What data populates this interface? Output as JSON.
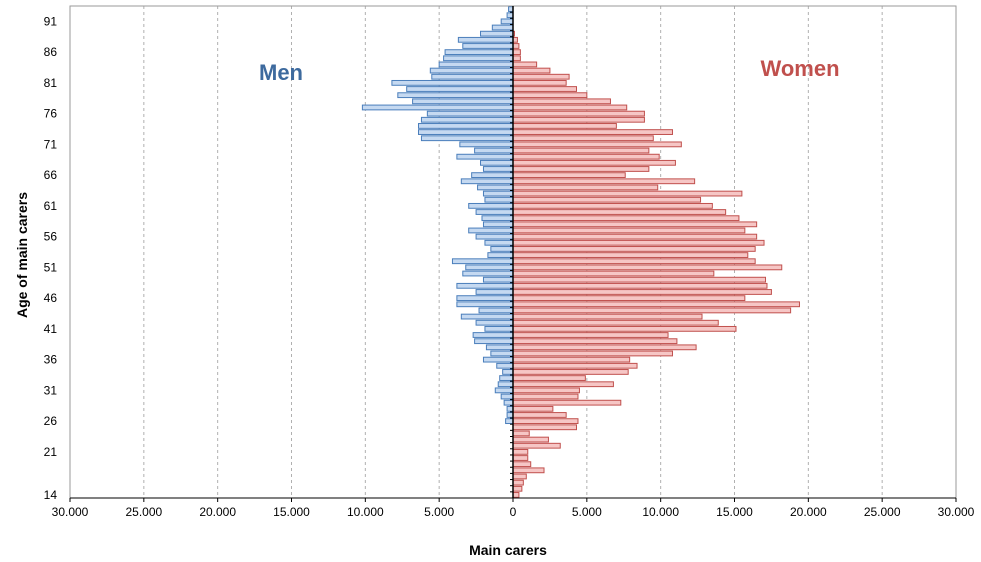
{
  "chart_data": {
    "type": "bar",
    "orientation": "horizontal-population-pyramid",
    "xlabel": "Main carers",
    "ylabel": "Age of main carers",
    "xlim": [
      -30000,
      30000
    ],
    "x_tick_labels": [
      "30.000",
      "25.000",
      "20.000",
      "15.000",
      "10.000",
      "5.000",
      "0",
      "5.000",
      "10.000",
      "15.000",
      "20.000",
      "25.000",
      "30.000"
    ],
    "x_tick_values": [
      -30000,
      -25000,
      -20000,
      -15000,
      -10000,
      -5000,
      0,
      5000,
      10000,
      15000,
      20000,
      25000,
      30000
    ],
    "y_tick_labels": [
      "14",
      "21",
      "26",
      "31",
      "36",
      "41",
      "46",
      "51",
      "56",
      "61",
      "66",
      "71",
      "76",
      "81",
      "86",
      "91"
    ],
    "y_tick_values": [
      14,
      21,
      26,
      31,
      36,
      41,
      46,
      51,
      56,
      61,
      66,
      71,
      76,
      81,
      86,
      91
    ],
    "grid": "vertical dashed",
    "ages": [
      14,
      15,
      16,
      17,
      18,
      19,
      20,
      21,
      22,
      23,
      24,
      25,
      26,
      27,
      28,
      29,
      30,
      31,
      32,
      33,
      34,
      35,
      36,
      37,
      38,
      39,
      40,
      41,
      42,
      43,
      44,
      45,
      46,
      47,
      48,
      49,
      50,
      51,
      52,
      53,
      54,
      55,
      56,
      57,
      58,
      59,
      60,
      61,
      62,
      63,
      64,
      65,
      66,
      67,
      68,
      69,
      70,
      71,
      72,
      73,
      74,
      75,
      76,
      77,
      78,
      79,
      80,
      81,
      82,
      83,
      84,
      85,
      86,
      87,
      88,
      89,
      90,
      91,
      92,
      93
    ],
    "series": [
      {
        "name": "Men",
        "color": "#3D6A9E",
        "fill": "#C5D9F1",
        "stroke": "#4A7EBB",
        "values": [
          0,
          0,
          0,
          0,
          0,
          0,
          0,
          0,
          0,
          0,
          0,
          0,
          500,
          400,
          400,
          600,
          800,
          1200,
          1000,
          900,
          700,
          1100,
          2000,
          1500,
          1800,
          2600,
          2700,
          1900,
          2500,
          3500,
          2300,
          3800,
          3800,
          2500,
          3800,
          2000,
          3400,
          3200,
          4100,
          1700,
          1500,
          1900,
          2500,
          3000,
          2000,
          2100,
          2500,
          3000,
          1900,
          2000,
          2400,
          3500,
          2800,
          2000,
          2200,
          3800,
          2600,
          3600,
          6200,
          6400,
          6400,
          6200,
          5800,
          10200,
          6800,
          7800,
          7200,
          8200,
          5500,
          5600,
          5000,
          4700,
          4600,
          3400,
          3700,
          2200,
          1400,
          800,
          400,
          300
        ]
      },
      {
        "name": "Women",
        "color": "#C0504D",
        "fill": "#F6C6C5",
        "stroke": "#C0504D",
        "values": [
          400,
          600,
          700,
          900,
          2100,
          1200,
          1000,
          1000,
          3200,
          2400,
          1100,
          4300,
          4400,
          3600,
          2700,
          7300,
          4400,
          4500,
          6800,
          4900,
          7800,
          8400,
          7900,
          10800,
          12400,
          11100,
          10500,
          15100,
          13900,
          12800,
          18800,
          19400,
          15700,
          17500,
          17200,
          17100,
          13600,
          18200,
          16400,
          15900,
          16400,
          17000,
          16500,
          15700,
          16500,
          15300,
          14400,
          13500,
          12700,
          15500,
          9800,
          12300,
          7600,
          9200,
          11000,
          9900,
          9200,
          11400,
          9500,
          10800,
          7000,
          8900,
          8900,
          7700,
          6600,
          5000,
          4300,
          3600,
          3800,
          2500,
          1600,
          500,
          500,
          400,
          300,
          100,
          0,
          0,
          0,
          0
        ]
      }
    ]
  }
}
